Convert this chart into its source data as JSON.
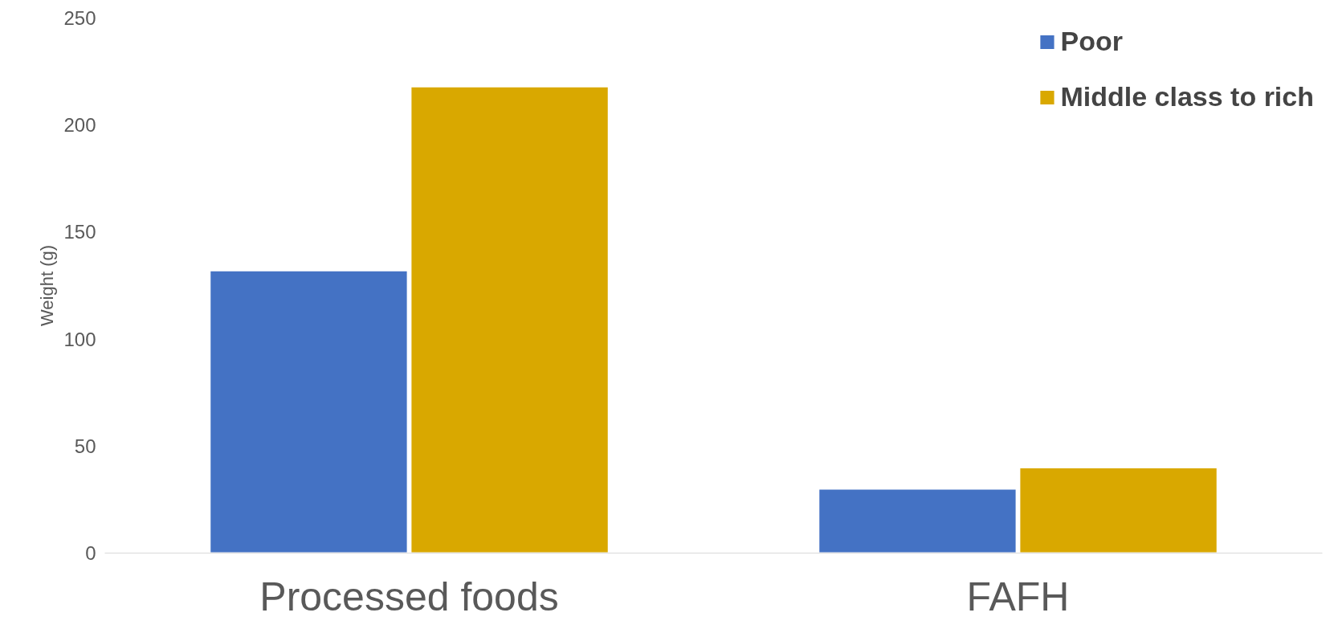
{
  "chart_data": {
    "type": "bar",
    "ylabel": "Weight (g)",
    "categories": [
      "Processed foods",
      "FAFH"
    ],
    "series": [
      {
        "name": "Poor",
        "color": "#4472c4",
        "values": [
          132,
          30
        ]
      },
      {
        "name": "Middle class to rich",
        "color": "#d9a800",
        "values": [
          218,
          40
        ]
      }
    ],
    "ylim": [
      0,
      250
    ],
    "yticks": [
      0,
      50,
      100,
      150,
      200,
      250
    ],
    "grid": false,
    "legend": "top right"
  }
}
